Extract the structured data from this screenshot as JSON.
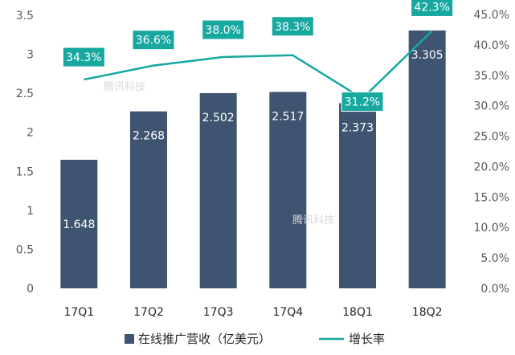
{
  "chart_data": {
    "type": "bar",
    "categories": [
      "17Q1",
      "17Q2",
      "17Q3",
      "17Q4",
      "18Q1",
      "18Q2"
    ],
    "series": [
      {
        "name": "在线推广营收（亿美元）",
        "type": "bar",
        "axis": "left",
        "values": [
          1.648,
          2.268,
          2.502,
          2.517,
          2.373,
          3.305
        ],
        "labels": [
          "1.648",
          "2.268",
          "2.502",
          "2.517",
          "2.373",
          "3.305"
        ],
        "color": "#3f5470"
      },
      {
        "name": "增长率",
        "type": "line",
        "axis": "right",
        "values": [
          34.3,
          36.6,
          38.0,
          38.3,
          31.2,
          42.3
        ],
        "labels": [
          "34.3%",
          "36.6%",
          "38.0%",
          "38.3%",
          "31.2%",
          "42.3%"
        ],
        "color": "#17a8a0"
      }
    ],
    "y_left": {
      "min": 0,
      "max": 3.5,
      "ticks": [
        "0",
        "0.5",
        "1",
        "1.5",
        "2",
        "2.5",
        "3",
        "3.5"
      ]
    },
    "y_right": {
      "min": 0,
      "max": 45,
      "ticks": [
        "0.0%",
        "5.0%",
        "10.0%",
        "15.0%",
        "20.0%",
        "25.0%",
        "30.0%",
        "35.0%",
        "40.0%",
        "45.0%"
      ]
    },
    "grid": false,
    "legend": "bottom",
    "watermark": "腾讯科技"
  }
}
